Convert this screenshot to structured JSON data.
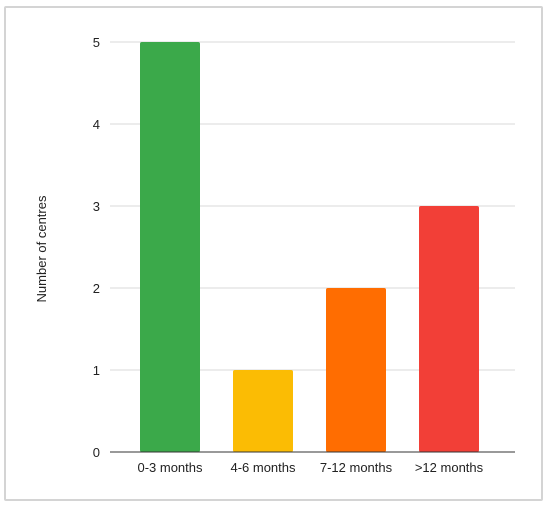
{
  "chart_data": {
    "type": "bar",
    "title": "",
    "xlabel": "",
    "ylabel": "Number of centres",
    "categories": [
      "0-3 months",
      "4-6 months",
      "7-12 months",
      ">12 months"
    ],
    "values": [
      5,
      1,
      2,
      3
    ],
    "colors": [
      "#3ba94a",
      "#fbbc04",
      "#ff6d01",
      "#f23f37"
    ],
    "ylim": [
      0,
      5
    ],
    "yticks": [
      0,
      1,
      2,
      3,
      4,
      5
    ],
    "ytick_labels": [
      "0",
      "1",
      "2",
      "3",
      "4",
      "5"
    ],
    "grid": true,
    "legend": "none"
  }
}
